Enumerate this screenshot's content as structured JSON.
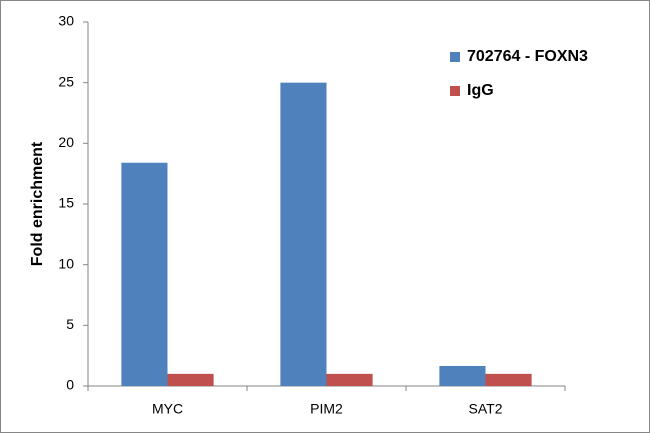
{
  "chart_data": {
    "type": "bar",
    "y_label": "Fold enrichment",
    "categories": [
      "MYC",
      "PIM2",
      "SAT2"
    ],
    "series": [
      {
        "name": "702764 - FOXN3",
        "color": "#4f81bd",
        "values": [
          18.4,
          25,
          1.65
        ]
      },
      {
        "name": "IgG",
        "color": "#c0504d",
        "values": [
          1,
          1,
          1
        ]
      }
    ],
    "ylim": [
      0,
      30
    ],
    "yticks": [
      0,
      5,
      10,
      15,
      20,
      25,
      30
    ],
    "grid": false,
    "legend": "upper right"
  }
}
